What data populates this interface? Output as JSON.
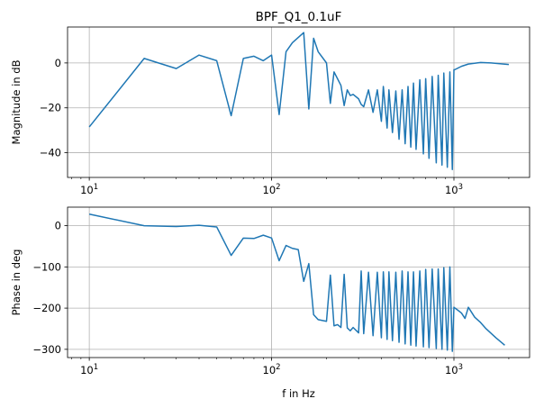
{
  "chart_data": [
    {
      "type": "line",
      "title": "BPF_Q1_0.1uF",
      "xlabel": "",
      "ylabel": "Magnitude in dB",
      "xscale": "log",
      "xlim": [
        7.6,
        2600
      ],
      "ylim": [
        -51,
        16
      ],
      "grid": true,
      "color": "#1f77b4",
      "xticks": [
        {
          "value": 10,
          "base": "10",
          "exp": "1"
        },
        {
          "value": 100,
          "base": "10",
          "exp": "2"
        },
        {
          "value": 1000,
          "base": "10",
          "exp": "3"
        }
      ],
      "yticks": [
        {
          "value": 0,
          "label": "0"
        },
        {
          "value": -20,
          "label": "−20"
        },
        {
          "value": -40,
          "label": "−40"
        }
      ],
      "series": [
        {
          "x": [
            10,
            20,
            30,
            40,
            50,
            60,
            70,
            80,
            90,
            100,
            110,
            120,
            130,
            150,
            160,
            170,
            180,
            200,
            210,
            220,
            240,
            250,
            260,
            270,
            280,
            300,
            310,
            320,
            340,
            360,
            380,
            400,
            410,
            430,
            440,
            460,
            480,
            500,
            520,
            540,
            560,
            580,
            600,
            620,
            650,
            680,
            700,
            730,
            760,
            800,
            820,
            860,
            880,
            920,
            950,
            980,
            1000,
            1010,
            1100,
            1200,
            1400,
            1600,
            2000
          ],
          "values": [
            -28.5,
            2,
            -2.5,
            3.5,
            1,
            -23.5,
            2,
            3,
            1,
            3.5,
            -23,
            5,
            9,
            13.5,
            -20.5,
            11,
            5,
            0,
            -18,
            -4,
            -10,
            -19,
            -12,
            -14.5,
            -14,
            -16,
            -18.5,
            -19.5,
            -12,
            -22,
            -12,
            -26,
            -10.5,
            -29,
            -12,
            -31,
            -12.5,
            -34,
            -12,
            -36,
            -10.5,
            -37.5,
            -9,
            -38.5,
            -7.5,
            -40.5,
            -7,
            -42.5,
            -6,
            -44.5,
            -5.5,
            -45.5,
            -4.5,
            -46.5,
            -4,
            -47.5,
            -3,
            -3,
            -1.5,
            -0.5,
            0.2,
            0,
            -0.7
          ]
        }
      ]
    },
    {
      "type": "line",
      "title": "",
      "xlabel": "f in Hz",
      "ylabel": "Phase in deg",
      "xscale": "log",
      "xlim": [
        7.6,
        2600
      ],
      "ylim": [
        -320,
        45
      ],
      "grid": true,
      "color": "#1f77b4",
      "xticks": [
        {
          "value": 10,
          "base": "10",
          "exp": "1"
        },
        {
          "value": 100,
          "base": "10",
          "exp": "2"
        },
        {
          "value": 1000,
          "base": "10",
          "exp": "3"
        }
      ],
      "yticks": [
        {
          "value": 0,
          "label": "0"
        },
        {
          "value": -100,
          "label": "−100"
        },
        {
          "value": -200,
          "label": "−200"
        },
        {
          "value": -300,
          "label": "−300"
        }
      ],
      "series": [
        {
          "x": [
            10,
            20,
            30,
            40,
            50,
            60,
            70,
            80,
            90,
            100,
            110,
            120,
            130,
            140,
            150,
            160,
            170,
            180,
            200,
            210,
            220,
            230,
            240,
            250,
            260,
            270,
            280,
            300,
            310,
            320,
            340,
            360,
            380,
            400,
            410,
            430,
            440,
            460,
            480,
            500,
            520,
            540,
            560,
            580,
            600,
            620,
            650,
            680,
            700,
            730,
            760,
            800,
            820,
            860,
            880,
            920,
            950,
            980,
            1000,
            1050,
            1100,
            1150,
            1200,
            1300,
            1400,
            1500,
            1700,
            1900
          ],
          "values": [
            28,
            0,
            -2,
            1,
            -3,
            -72,
            -30,
            -31,
            -23,
            -30,
            -85,
            -48,
            -55,
            -58,
            -135,
            -92,
            -216,
            -228,
            -232,
            -120,
            -243,
            -240,
            -247,
            -118,
            -248,
            -255,
            -247,
            -260,
            -110,
            -262,
            -113,
            -267,
            -113,
            -272,
            -112,
            -276,
            -112,
            -279,
            -113,
            -283,
            -110,
            -287,
            -112,
            -290,
            -112,
            -292,
            -110,
            -294,
            -106,
            -296,
            -105,
            -298,
            -105,
            -300,
            -102,
            -302,
            -100,
            -305,
            -198,
            -205,
            -212,
            -225,
            -198,
            -222,
            -235,
            -250,
            -272,
            -290
          ]
        }
      ]
    }
  ]
}
